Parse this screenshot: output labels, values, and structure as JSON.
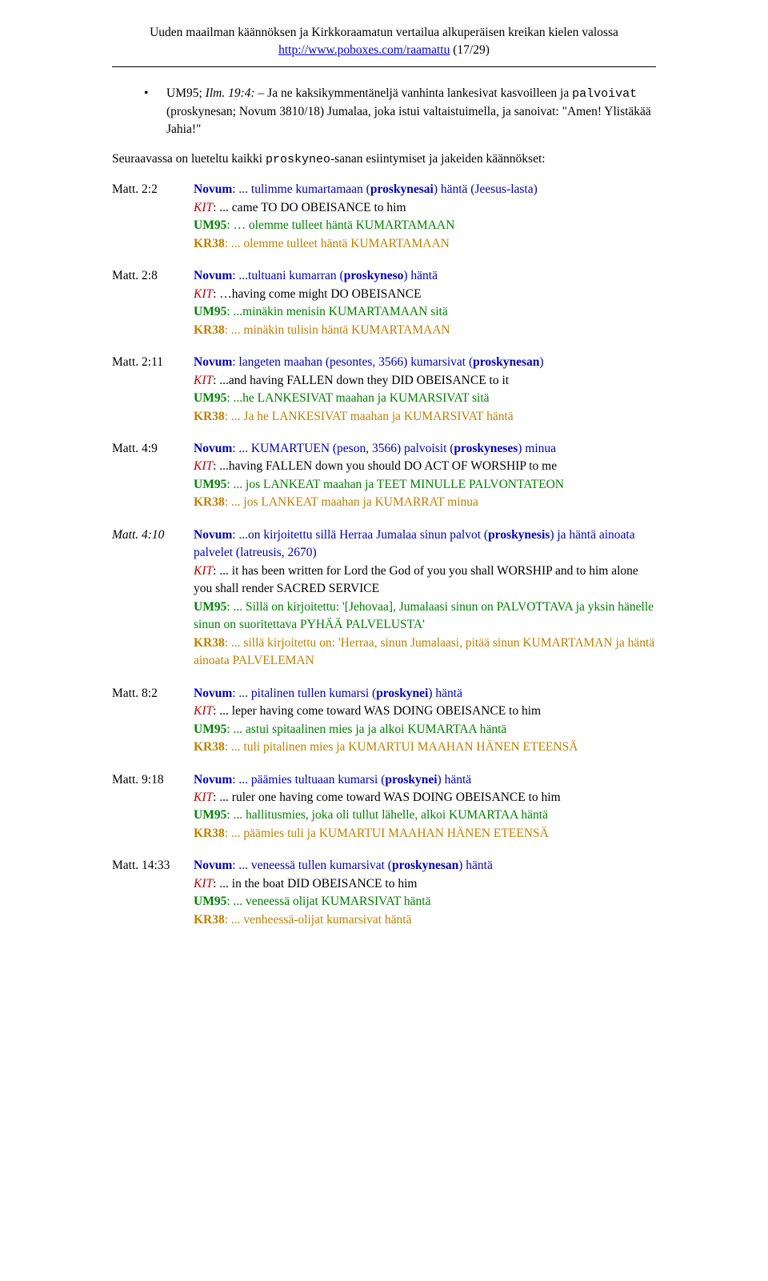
{
  "header": {
    "line1": "Uuden maailman käännöksen ja Kirkkoraamatun vertailua alkuperäisen kreikan kielen valossa",
    "link_text": "http://www.poboxes.com/raamattu",
    "pagecount": " (17/29)"
  },
  "bullet": {
    "lead": "UM95; ",
    "lead_ital": "Ilm. 19:4:",
    "text_a": " – Ja ne kaksikymmentäneljä vanhinta lankesivat kasvoilleen ja ",
    "mono": "palvoivat",
    "text_b": " (proskynesan; Novum 3810/18) Jumalaa, joka istui valtaistuimella, ja sanoivat: \"Amen! Ylistäkää Jahia!\""
  },
  "intro_a": "Seuraavassa on lueteltu kaikki ",
  "intro_mono": "proskyneo",
  "intro_b": "-sanan esiintymiset ja jakeiden käännökset:",
  "labels": {
    "novum": "Novum",
    "kit": "KIT",
    "um95": "UM95",
    "kr38": "KR38"
  },
  "entries": [
    {
      "ref": "Matt. 2:2",
      "italic": false,
      "novum": {
        "a": ": ... tulimme kumartamaan (",
        "b": "proskynesai",
        "c": ") häntä (Jeesus-lasta)"
      },
      "kit": ": ... came TO DO OBEISANCE to him",
      "um95": ": … olemme tulleet häntä KUMARTAMAAN",
      "kr38": ": ... olemme tulleet häntä KUMARTAMAAN"
    },
    {
      "ref": "Matt. 2:8",
      "italic": false,
      "novum": {
        "a": ": ...tultuani kumarran  (",
        "b": "proskyneso",
        "c": ") häntä"
      },
      "kit": ": …having come might DO OBEISANCE",
      "um95": ": ...minäkin menisin KUMARTAMAAN sitä",
      "kr38": ": ... minäkin tulisin häntä KUMARTAMAAN"
    },
    {
      "ref": "Matt. 2:11",
      "italic": false,
      "novum": {
        "a": ": langeten maahan (pesontes, 3566) kumarsivat (",
        "b": "proskynesan",
        "c": ")"
      },
      "kit": ": ...and having FALLEN down they DID OBEISANCE to it",
      "um95": ": ...he LANKESIVAT maahan ja KUMARSIVAT sitä",
      "kr38": ": ... Ja he LANKESIVAT maahan ja KUMARSIVAT häntä"
    },
    {
      "ref": "Matt. 4:9",
      "italic": false,
      "novum": {
        "a": ": ... KUMARTUEN (peson, 3566) palvoisit (",
        "b": "proskyneses",
        "c": ") minua"
      },
      "kit": ": ...having FALLEN down you should DO ACT OF WORSHIP to me",
      "um95": ": ... jos LANKEAT maahan ja TEET MINULLE PALVONTATEON",
      "kr38": ": ... jos LANKEAT maahan ja KUMARRAT minua"
    },
    {
      "ref": "Matt. 4:10",
      "italic": true,
      "novum": {
        "a": ": ...on kirjoitettu sillä Herraa Jumalaa sinun palvot (",
        "b": "proskynesis",
        "c": ") ja häntä ainoata palvelet (latreusis, 2670)"
      },
      "kit": ": ... it has been written for Lord the God of you you shall WORSHIP and to him alone you shall render SACRED SERVICE",
      "um95": ": ... Sillä on kirjoitettu: '[Jehovaa], Jumalaasi sinun on PALVOTTAVA ja yksin hänelle sinun on suoritettava PYHÄÄ PALVELUSTA'",
      "kr38": ": ... sillä kirjoitettu on: 'Herraa, sinun Jumalaasi, pitää sinun KUMARTAMAN ja häntä ainoata PALVELEMAN"
    },
    {
      "ref": "Matt. 8:2",
      "italic": false,
      "novum": {
        "a": ": ... pitalinen tullen kumarsi (",
        "b": "proskynei",
        "c": ") häntä"
      },
      "kit": ": ... leper having come toward WAS DOING OBEISANCE to him",
      "um95": ": ... astui spitaalinen mies ja ja alkoi KUMARTAA häntä",
      "kr38": ": ... tuli pitalinen mies ja KUMARTUI MAAHAN HÄNEN ETEENSÄ"
    },
    {
      "ref": "Matt. 9:18",
      "italic": false,
      "novum": {
        "a": ": ... päämies tultuaan kumarsi (",
        "b": "proskynei",
        "c": ") häntä"
      },
      "kit": ": ... ruler one having come toward WAS DOING OBEISANCE to him",
      "um95": ": ... hallitusmies, joka oli tullut lähelle, alkoi KUMARTAA häntä",
      "kr38": ": ... päämies tuli ja KUMARTUI MAAHAN HÄNEN ETEENSÄ"
    },
    {
      "ref": "Matt. 14:33",
      "italic": false,
      "novum": {
        "a": ": ... veneessä tullen kumarsivat (",
        "b": "proskynesan",
        "c": ") häntä"
      },
      "kit": ": ... in the boat DID OBEISANCE to him",
      "um95": ": ... veneessä olijat KUMARSIVAT häntä",
      "kr38": ": ... venheessä-olijat kumarsivat häntä"
    }
  ]
}
